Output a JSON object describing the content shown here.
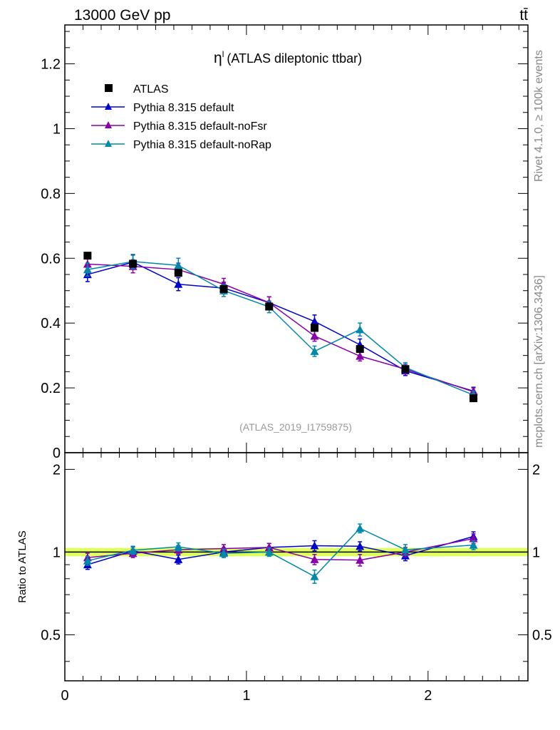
{
  "header": {
    "energy_label": "13000 GeV pp",
    "process_label": "tt̄"
  },
  "side": {
    "rivet_label": "Rivet 4.1.0, ≥ 100k events",
    "source_label": "mcplots.cern.ch [arXiv:1306.3436]"
  },
  "colors": {
    "ATLAS": "#000000",
    "default": "#0000cc",
    "noFsr": "#8800aa",
    "noRap": "#0088aa",
    "band": "#d8ff40"
  },
  "chart_data": {
    "type": "scatter",
    "title": "η",
    "title_sup": "l",
    "title_rest": "(ATLAS dileptonic ttbar)",
    "analysis_label": "(ATLAS_2019_I1759875)",
    "xlabel": "",
    "ylabel": "",
    "ratio_ylabel": "Ratio to ATLAS",
    "xlim": [
      0,
      2.55
    ],
    "ylim": [
      0,
      1.32
    ],
    "ratio_ylim": [
      0.34,
      2.3
    ],
    "x_ticks": [
      0,
      1,
      2
    ],
    "x_tick_labels": [
      "0",
      "1",
      "2"
    ],
    "y_ticks": [
      0,
      0.2,
      0.4,
      0.6,
      0.8,
      1,
      1.2
    ],
    "y_tick_labels": [
      "0",
      "0.2",
      "0.4",
      "0.6",
      "0.8",
      "1",
      "1.2"
    ],
    "ratio_ticks": [
      0.5,
      1,
      2
    ],
    "ratio_tick_labels": [
      "0.5",
      "1",
      "2"
    ],
    "x": [
      0.125,
      0.375,
      0.625,
      0.875,
      1.125,
      1.375,
      1.625,
      1.875,
      2.25
    ],
    "series": [
      {
        "name": "ATLAS",
        "key": "ATLAS",
        "marker": "square",
        "values": [
          0.608,
          0.583,
          0.555,
          0.505,
          0.451,
          0.385,
          0.32,
          0.258,
          0.168
        ],
        "ratio": [
          1,
          1,
          1,
          1,
          1,
          1,
          1,
          1,
          1
        ]
      },
      {
        "name": "Pythia 8.315 default",
        "key": "default",
        "marker": "triangle",
        "values": [
          0.55,
          0.588,
          0.52,
          0.508,
          0.463,
          0.405,
          0.333,
          0.253,
          0.19
        ],
        "errors": [
          0.022,
          0.022,
          0.02,
          0.018,
          0.018,
          0.02,
          0.018,
          0.015,
          0.012
        ],
        "ratio": [
          0.9,
          1.01,
          0.94,
          1.0,
          1.04,
          1.055,
          1.05,
          0.97,
          1.14
        ],
        "ratio_errors": [
          0.035,
          0.035,
          0.035,
          0.035,
          0.035,
          0.045,
          0.04,
          0.04,
          0.045
        ]
      },
      {
        "name": "Pythia 8.315 default-noFsr",
        "key": "noFsr",
        "marker": "triangle",
        "values": [
          0.582,
          0.575,
          0.565,
          0.52,
          0.463,
          0.36,
          0.298,
          0.258,
          0.188
        ],
        "errors": [
          0.02,
          0.02,
          0.02,
          0.018,
          0.018,
          0.016,
          0.015,
          0.015,
          0.012
        ],
        "ratio": [
          0.955,
          0.99,
          1.02,
          1.03,
          1.04,
          0.94,
          0.935,
          1.0,
          1.12
        ],
        "ratio_errors": [
          0.035,
          0.035,
          0.035,
          0.035,
          0.035,
          0.04,
          0.045,
          0.04,
          0.045
        ]
      },
      {
        "name": "Pythia 8.315 default-noRap",
        "key": "noRap",
        "marker": "triangle",
        "values": [
          0.565,
          0.59,
          0.578,
          0.5,
          0.45,
          0.313,
          0.38,
          0.263,
          0.178
        ],
        "errors": [
          0.02,
          0.022,
          0.022,
          0.018,
          0.018,
          0.016,
          0.02,
          0.015,
          0.012
        ],
        "ratio": [
          0.93,
          1.015,
          1.045,
          0.99,
          1.0,
          0.815,
          1.22,
          1.02,
          1.06
        ],
        "ratio_errors": [
          0.035,
          0.035,
          0.035,
          0.035,
          0.035,
          0.045,
          0.045,
          0.045,
          0.04
        ]
      }
    ]
  }
}
